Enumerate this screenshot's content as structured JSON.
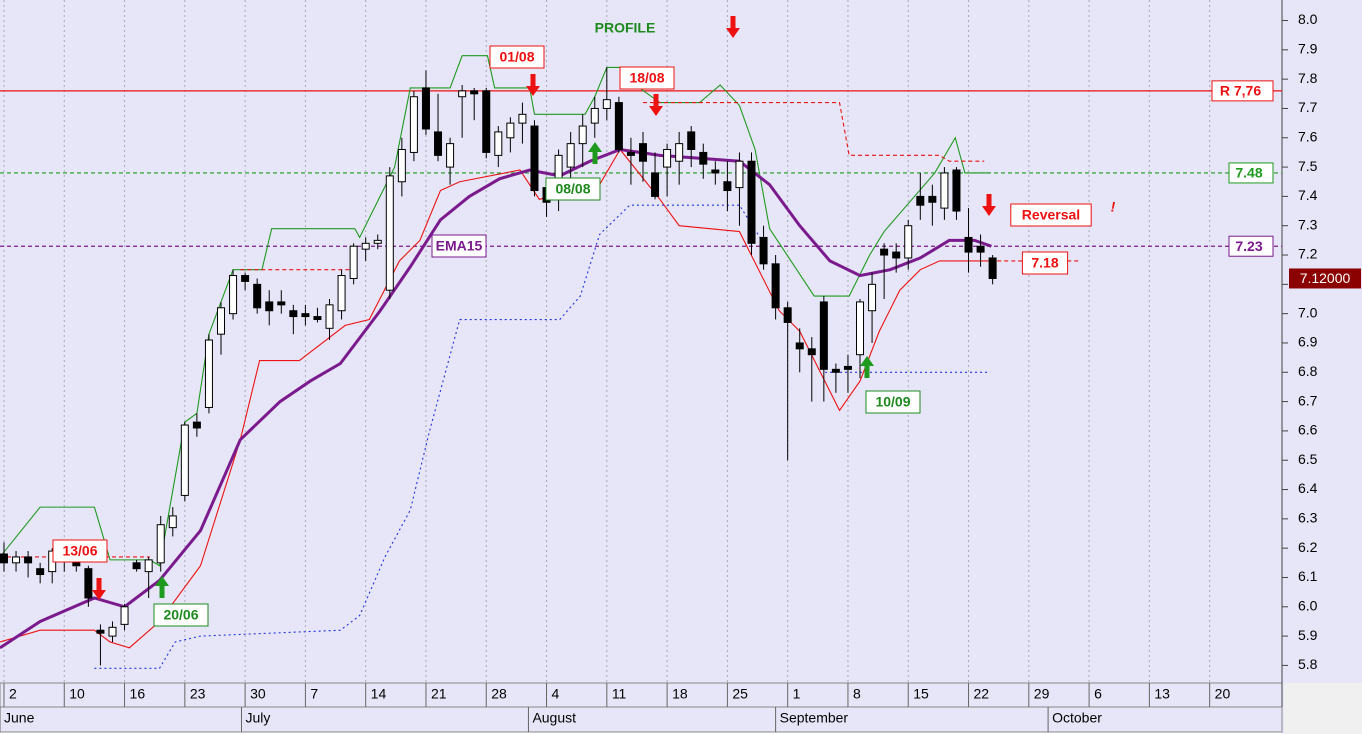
{
  "chart_data": {
    "type": "candlestick",
    "xlim": [
      -0.33,
      106
    ],
    "ylim": [
      5.74,
      8.07
    ],
    "yticks": [
      5.8,
      5.9,
      {
        "value": 6,
        "label": "6.0"
      },
      6.1,
      6.2,
      6.3,
      6.4,
      6.5,
      6.6,
      6.7,
      6.8,
      6.9,
      {
        "value": 7,
        "label": "7.0"
      },
      7.1,
      7.2,
      7.3,
      7.4,
      7.5,
      7.6,
      7.7,
      7.8,
      7.9,
      {
        "value": 8,
        "label": "8.0"
      }
    ],
    "xticks": [
      {
        "value": 0,
        "label": "2"
      },
      {
        "value": 5,
        "label": "10"
      },
      {
        "value": 10,
        "label": "16"
      },
      {
        "value": 15,
        "label": "23"
      },
      {
        "value": 20,
        "label": "30"
      },
      {
        "value": 25,
        "label": "7"
      },
      {
        "value": 30,
        "label": "14"
      },
      {
        "value": 35,
        "label": "21"
      },
      {
        "value": 40,
        "label": "28"
      },
      {
        "value": 45,
        "label": "4"
      },
      {
        "value": 50,
        "label": "11"
      },
      {
        "value": 55,
        "label": "18"
      },
      {
        "value": 60,
        "label": "25"
      },
      {
        "value": 65,
        "label": "1"
      },
      {
        "value": 70,
        "label": "8"
      },
      {
        "value": 75,
        "label": "15"
      },
      {
        "value": 80,
        "label": "22"
      },
      {
        "value": 85,
        "label": "29"
      },
      {
        "value": 90,
        "label": "6"
      },
      {
        "value": 95,
        "label": "13"
      },
      {
        "value": 100,
        "label": "20"
      }
    ],
    "month_ticks": [
      {
        "value": -0.33,
        "label": "June"
      },
      {
        "value": 19.7,
        "label": "July"
      },
      {
        "value": 43.5,
        "label": "August"
      },
      {
        "value": 64,
        "label": "September"
      },
      {
        "value": 86.6,
        "label": "October"
      }
    ],
    "grid": true,
    "candles": {
      "x": [
        0,
        1,
        2,
        3,
        4,
        5,
        6,
        7,
        8,
        9,
        10,
        11,
        12,
        13,
        14,
        15,
        16,
        17,
        18,
        19,
        20,
        21,
        22,
        23,
        24,
        25,
        26,
        27,
        28,
        29,
        30,
        31,
        32,
        33,
        34,
        35,
        36,
        37,
        38,
        39,
        40,
        41,
        42,
        43,
        44,
        45,
        46,
        47,
        48,
        49,
        50,
        51,
        52,
        53,
        54,
        55,
        56,
        57,
        58,
        59,
        60,
        61,
        62,
        63,
        64,
        65,
        66,
        67,
        68,
        69,
        70,
        71,
        72,
        73,
        74,
        75,
        76,
        77,
        78,
        79,
        80,
        81,
        82
      ],
      "open": [
        6.18,
        6.15,
        6.17,
        6.13,
        6.12,
        6.17,
        6.16,
        6.13,
        5.92,
        5.9,
        5.94,
        6.15,
        6.12,
        6.15,
        6.27,
        6.38,
        6.63,
        6.68,
        6.93,
        7.0,
        7.13,
        7.1,
        7.04,
        7.04,
        7.01,
        7.0,
        6.99,
        6.95,
        7.01,
        7.12,
        7.22,
        7.24,
        7.08,
        7.45,
        7.55,
        7.77,
        7.62,
        7.5,
        7.74,
        7.76,
        7.76,
        7.54,
        7.6,
        7.65,
        7.64,
        7.43,
        7.42,
        7.5,
        7.58,
        7.65,
        7.7,
        7.72,
        7.55,
        7.58,
        7.48,
        7.5,
        7.52,
        7.62,
        7.55,
        7.49,
        7.45,
        7.43,
        7.52,
        7.26,
        7.17,
        7.02,
        6.9,
        6.88,
        7.04,
        6.81,
        6.82,
        6.86,
        7.01,
        7.22,
        7.21,
        7.19,
        7.4,
        7.4,
        7.36,
        7.49,
        7.26,
        7.23,
        7.19
      ],
      "high": [
        6.22,
        6.19,
        6.19,
        6.15,
        6.2,
        6.19,
        6.19,
        6.14,
        5.94,
        5.95,
        6.01,
        6.16,
        6.17,
        6.31,
        6.34,
        6.63,
        6.66,
        6.93,
        7.04,
        7.15,
        7.14,
        7.12,
        7.08,
        7.08,
        7.03,
        7.03,
        7.02,
        7.05,
        7.15,
        7.24,
        7.26,
        7.27,
        7.5,
        7.6,
        7.76,
        7.83,
        7.75,
        7.6,
        7.78,
        7.77,
        7.77,
        7.64,
        7.67,
        7.72,
        7.66,
        7.45,
        7.56,
        7.62,
        7.68,
        7.74,
        7.84,
        7.74,
        7.6,
        7.62,
        7.55,
        7.58,
        7.62,
        7.64,
        7.58,
        7.52,
        7.52,
        7.55,
        7.55,
        7.3,
        7.2,
        7.04,
        6.95,
        6.92,
        7.06,
        6.83,
        6.86,
        7.05,
        7.14,
        7.24,
        7.24,
        7.32,
        7.48,
        7.44,
        7.5,
        7.5,
        7.36,
        7.27,
        7.2
      ],
      "low": [
        6.12,
        6.12,
        6.1,
        6.08,
        6.08,
        6.12,
        6.12,
        6.0,
        5.8,
        5.88,
        5.92,
        6.12,
        6.03,
        6.12,
        6.24,
        6.36,
        6.58,
        6.66,
        6.86,
        6.98,
        7.08,
        7.0,
        6.96,
        7.0,
        6.93,
        6.96,
        6.97,
        6.91,
        6.98,
        7.1,
        7.18,
        7.22,
        7.05,
        7.4,
        7.52,
        7.61,
        7.52,
        7.44,
        7.6,
        7.66,
        7.53,
        7.5,
        7.55,
        7.58,
        7.4,
        7.33,
        7.35,
        7.45,
        7.5,
        7.6,
        7.66,
        7.55,
        7.44,
        7.45,
        7.39,
        7.4,
        7.44,
        7.5,
        7.46,
        7.44,
        7.35,
        7.3,
        7.2,
        7.15,
        6.98,
        6.5,
        6.8,
        6.7,
        6.7,
        6.73,
        6.73,
        6.78,
        6.9,
        7.05,
        7.14,
        7.15,
        7.32,
        7.3,
        7.32,
        7.32,
        7.14,
        7.16,
        7.1
      ],
      "close": [
        6.15,
        6.17,
        6.15,
        6.11,
        6.19,
        6.16,
        6.14,
        6.03,
        5.91,
        5.93,
        6.0,
        6.13,
        6.16,
        6.28,
        6.31,
        6.62,
        6.61,
        6.91,
        7.02,
        7.13,
        7.11,
        7.02,
        7.01,
        7.03,
        6.99,
        6.99,
        6.98,
        7.03,
        7.13,
        7.23,
        7.24,
        7.25,
        7.47,
        7.56,
        7.74,
        7.63,
        7.54,
        7.58,
        7.76,
        7.75,
        7.55,
        7.62,
        7.65,
        7.68,
        7.42,
        7.38,
        7.54,
        7.58,
        7.64,
        7.7,
        7.73,
        7.56,
        7.54,
        7.52,
        7.4,
        7.56,
        7.58,
        7.56,
        7.51,
        7.48,
        7.42,
        7.52,
        7.24,
        7.17,
        7.02,
        6.97,
        6.88,
        6.86,
        6.81,
        6.8,
        6.81,
        7.04,
        7.1,
        7.2,
        7.19,
        7.3,
        7.37,
        7.38,
        7.48,
        7.35,
        7.21,
        7.21,
        7.12
      ]
    },
    "lines": [
      {
        "color": "#1e9a1e",
        "style": "solid",
        "x": [
          -0.33,
          3,
          7.5,
          8.8,
          12.1,
          12.9,
          15,
          16,
          17,
          18,
          19,
          21.4,
          22.2,
          29.1,
          29.5,
          32.4,
          33.7,
          37,
          38,
          40.1,
          40.7,
          43.6,
          44,
          48.2,
          49,
          50,
          51.9,
          52.7,
          54.4,
          57.7,
          59.4,
          61,
          62.3,
          63.5,
          67.2,
          70.1,
          71.8,
          73,
          77.2,
          78.9,
          79.7,
          81.8
        ],
        "values": [
          6.17,
          6.34,
          6.34,
          6.16,
          6.16,
          6.14,
          6.63,
          6.66,
          6.93,
          7.04,
          7.15,
          7.15,
          7.29,
          7.29,
          7.26,
          7.5,
          7.77,
          7.77,
          7.88,
          7.88,
          7.77,
          7.77,
          7.68,
          7.68,
          7.74,
          7.84,
          7.84,
          7.77,
          7.72,
          7.72,
          7.78,
          7.71,
          7.56,
          7.29,
          7.06,
          7.06,
          7.2,
          7.28,
          7.48,
          7.6,
          7.48,
          7.48
        ]
      },
      {
        "color": "#ee1111",
        "style": "solid",
        "x": [
          -0.33,
          3,
          7.5,
          8.8,
          10.4,
          12.9,
          16.3,
          19.6,
          21.2,
          24.5,
          28.3,
          30.3,
          32.8,
          34.5,
          36.2,
          37.8,
          42.8,
          44.4,
          49.4,
          51.1,
          54.4,
          56,
          61,
          64.3,
          66,
          69.3,
          71,
          72.6,
          74.3,
          76,
          77.6,
          81.8
        ],
        "values": [
          5.88,
          5.92,
          5.92,
          5.88,
          5.86,
          5.95,
          6.14,
          6.57,
          6.84,
          6.84,
          6.96,
          6.98,
          7.18,
          7.25,
          7.42,
          7.45,
          7.49,
          7.39,
          7.44,
          7.56,
          7.39,
          7.3,
          7.28,
          7.01,
          6.94,
          6.67,
          6.77,
          6.94,
          7.08,
          7.15,
          7.18,
          7.18
        ]
      },
      {
        "color": "#7a1a8c",
        "style": "thick",
        "x": [
          -0.33,
          3,
          7.5,
          10,
          12.9,
          16.3,
          19.6,
          22.9,
          25.4,
          27.9,
          31.2,
          33.7,
          36.2,
          38.6,
          41.1,
          43.6,
          46.1,
          48.6,
          51.1,
          54.4,
          57.7,
          61,
          63.5,
          66,
          68.5,
          71,
          73.5,
          76,
          78.4,
          80.5,
          81.9
        ],
        "values": [
          5.86,
          5.95,
          6.03,
          6.0,
          6.09,
          6.26,
          6.57,
          6.7,
          6.77,
          6.83,
          7.01,
          7.16,
          7.32,
          7.4,
          7.46,
          7.49,
          7.47,
          7.52,
          7.56,
          7.54,
          7.53,
          7.52,
          7.44,
          7.3,
          7.18,
          7.13,
          7.15,
          7.19,
          7.25,
          7.25,
          7.23
        ]
      },
      {
        "color": "#2233dd",
        "style": "dotted",
        "x": [
          7.5,
          12.9,
          14.2,
          16.3,
          27.9,
          29.5,
          31.6,
          33.7,
          35.3,
          37.8,
          46.1,
          47.8,
          49.4,
          51.9,
          61,
          62.7,
          63.5,
          68.1,
          81.8
        ],
        "values": [
          5.79,
          5.79,
          5.88,
          5.9,
          5.92,
          5.97,
          6.17,
          6.33,
          6.6,
          6.98,
          6.98,
          7.06,
          7.27,
          7.37,
          7.37,
          7.26,
          null,
          6.8,
          6.8
        ]
      },
      {
        "color": "#ee1111",
        "style": "dashed",
        "x": [
          -0.33,
          12.1,
          12.5,
          19.6,
          29.1,
          29.5,
          53,
          69.3,
          70.1,
          77.6,
          78.4,
          81.3,
          81.5,
          81.8,
          89.2
        ],
        "values": [
          6.17,
          6.17,
          null,
          7.15,
          7.15,
          null,
          7.72,
          7.72,
          7.54,
          7.54,
          7.52,
          7.52,
          null,
          7.18,
          7.18
        ]
      }
    ],
    "hlines": [
      {
        "value": 7.76,
        "label": "R 7,76",
        "color": "#ee1111",
        "style": "solid"
      },
      {
        "value": 7.48,
        "label": "7.48",
        "color": "#1e9a1e",
        "style": "dashed"
      },
      {
        "value": 7.23,
        "label": "7.23",
        "color": "#7a1a8c",
        "style": "dashed"
      }
    ],
    "last_price": {
      "value": 7.12,
      "label": "7.12000"
    },
    "annotations": [
      "PROFILE",
      "01/08",
      "18/08",
      "13/06",
      "20/06",
      "08/08",
      "10/09",
      "EMA15",
      "Reversal",
      "!",
      "7.18"
    ]
  }
}
